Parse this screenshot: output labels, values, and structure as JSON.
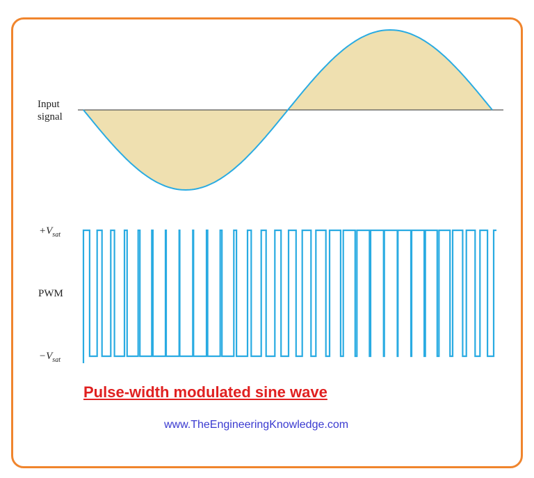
{
  "labels": {
    "input_signal_line1": "Input",
    "input_signal_line2": "signal",
    "pwm": "PWM",
    "vsat_pos_prefix": "+V",
    "vsat_neg_prefix": "−V",
    "vsat_sub": "sat"
  },
  "title": "Pulse-width modulated sine wave",
  "url": "www.TheEngineeringKnowledge.com",
  "colors": {
    "border": "#f0852d",
    "wave": "#29abe2",
    "fill": "#efe0b0",
    "title": "#e02020",
    "url": "#3a3ad0"
  },
  "chart_data": {
    "type": "line",
    "series": [
      {
        "name": "Input signal",
        "function": "-sin(x)",
        "x_range_cycles": [
          0,
          1
        ]
      },
      {
        "name": "PWM",
        "levels": [
          "-Vsat",
          "+Vsat"
        ],
        "pulses": 30
      }
    ]
  }
}
